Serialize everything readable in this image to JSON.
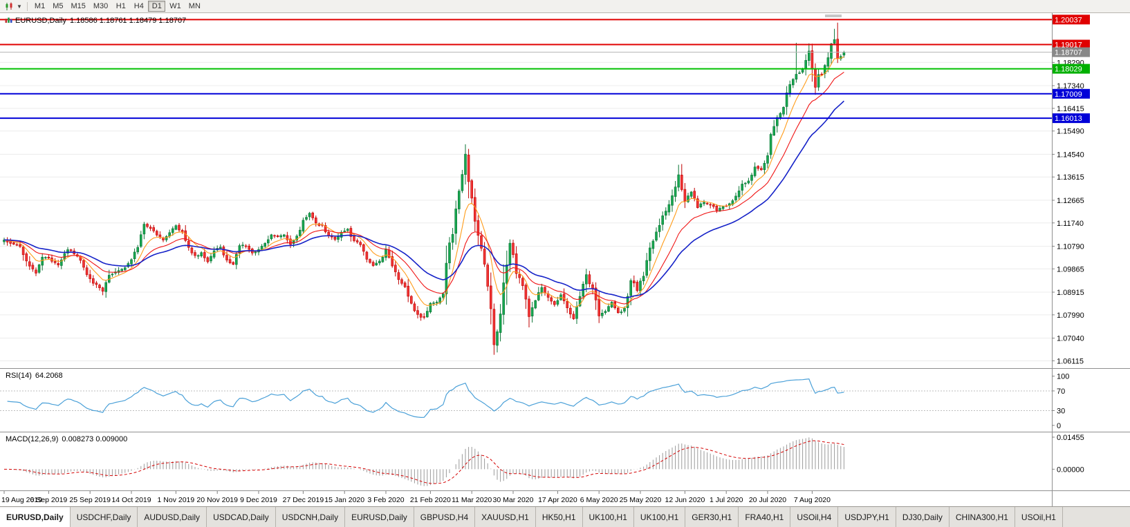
{
  "toolbar": {
    "timeframes": [
      "M1",
      "M5",
      "M15",
      "M30",
      "H1",
      "H4",
      "D1",
      "W1",
      "MN"
    ],
    "active_timeframe": "D1",
    "chart_icon": "candlestick-chart-icon"
  },
  "main_chart": {
    "title": "EURUSD,Daily",
    "ohlc": "1.18586 1.18761 1.18479 1.18707",
    "price_ticks": [
      "1.18290",
      "1.17340",
      "1.16415",
      "1.15490",
      "1.14540",
      "1.13615",
      "1.12665",
      "1.11740",
      "1.10790",
      "1.09865",
      "1.08915",
      "1.07990",
      "1.07040",
      "1.06115"
    ],
    "levels": [
      {
        "price": 1.20037,
        "label": "1.20037",
        "color": "#e00000",
        "badge_color": "#e00000",
        "width": 2,
        "type": "resistance-line"
      },
      {
        "price": 1.19017,
        "label": "1.19017",
        "color": "#e00000",
        "badge_color": "#e00000",
        "width": 2,
        "type": "resistance-line"
      },
      {
        "price": 1.18707,
        "label": "1.18707",
        "color": "#b6b6b6",
        "badge_color": "#888888",
        "width": 1,
        "type": "current-price-line"
      },
      {
        "price": 1.18029,
        "label": "1.18029",
        "color": "#00c000",
        "badge_color": "#00b000",
        "width": 2,
        "type": "support-line"
      },
      {
        "price": 1.17009,
        "label": "1.17009",
        "color": "#0000d8",
        "badge_color": "#0000d8",
        "width": 2,
        "type": "support-line"
      },
      {
        "price": 1.16013,
        "label": "1.16013",
        "color": "#0000d8",
        "badge_color": "#0000d8",
        "width": 2,
        "type": "support-line"
      }
    ],
    "date_labels": [
      {
        "label": "19 Aug 2019",
        "day": 0
      },
      {
        "label": "6 Sep 2019",
        "day": 14
      },
      {
        "label": "25 Sep 2019",
        "day": 27
      },
      {
        "label": "14 Oct 2019",
        "day": 40
      },
      {
        "label": "1 Nov 2019",
        "day": 54
      },
      {
        "label": "20 Nov 2019",
        "day": 67
      },
      {
        "label": "9 Dec 2019",
        "day": 80
      },
      {
        "label": "27 Dec 2019",
        "day": 94
      },
      {
        "label": "15 Jan 2020",
        "day": 107
      },
      {
        "label": "3 Feb 2020",
        "day": 120
      },
      {
        "label": "21 Feb 2020",
        "day": 134
      },
      {
        "label": "11 Mar 2020",
        "day": 147
      },
      {
        "label": "30 Mar 2020",
        "day": 160
      },
      {
        "label": "17 Apr 2020",
        "day": 174
      },
      {
        "label": "6 May 2020",
        "day": 187
      },
      {
        "label": "25 May 2020",
        "day": 200
      },
      {
        "label": "12 Jun 2020",
        "day": 214
      },
      {
        "label": "1 Jul 2020",
        "day": 227
      },
      {
        "label": "20 Jul 2020",
        "day": 240
      },
      {
        "label": "7 Aug 2020",
        "day": 254
      }
    ]
  },
  "rsi_panel": {
    "label": "RSI(14)",
    "value": "64.2068",
    "levels": [
      "100",
      "70",
      "30",
      "0"
    ],
    "upper_level": 70,
    "lower_level": 30,
    "line_color": "#4aa0d8"
  },
  "macd_panel": {
    "label": "MACD(12,26,9)",
    "values": "0.008273 0.009000",
    "ticks": [
      "0.01455",
      "0.00000"
    ],
    "histogram_color": "#9a9a9a",
    "signal_color": "#d40000"
  },
  "tabs": {
    "active_index": 0,
    "items": [
      "EURUSD,Daily",
      "USDCHF,Daily",
      "AUDUSD,Daily",
      "USDCAD,Daily",
      "USDCNH,Daily",
      "EURUSD,Daily",
      "GBPUSD,H4",
      "XAUUSD,H1",
      "HK50,H1",
      "UK100,H1",
      "UK100,H1",
      "GER30,H1",
      "FRA40,H1",
      "USOil,H4",
      "USDJPY,H1",
      "DJ30,Daily",
      "CHINA300,H1",
      "USOil,H1"
    ],
    "tab_icon": "chart-tab-icon"
  },
  "chart_data": {
    "type": "candlestick",
    "symbol": "EURUSD",
    "period": "Daily",
    "ylim": [
      1.05815,
      1.203
    ],
    "num_candles": 265,
    "last_ohlc": {
      "open": 1.18586,
      "high": 1.18761,
      "low": 1.18479,
      "close": 1.18707
    },
    "up_color": "#18a650",
    "up_border": "#0b7436",
    "down_color": "#f03535",
    "down_border": "#c00000",
    "moving_averages": [
      {
        "period": 8,
        "method": "ema",
        "color": "#ff9c1a"
      },
      {
        "period": 18,
        "method": "ema",
        "color": "#f01414"
      },
      {
        "period": 34,
        "method": "ema",
        "color": "#1522c8"
      }
    ],
    "indicators": {
      "rsi": {
        "period": 14,
        "last_value": 64.2068
      },
      "macd": {
        "fast": 12,
        "slow": 26,
        "signal": 9,
        "last_main": 0.008273,
        "last_signal": 0.009
      }
    },
    "close_anchors": [
      [
        0,
        1.1105
      ],
      [
        2,
        1.109
      ],
      [
        5,
        1.1078
      ],
      [
        8,
        1.0992
      ],
      [
        10,
        1.0972
      ],
      [
        12,
        1.1032
      ],
      [
        14,
        1.1028
      ],
      [
        17,
        1.1005
      ],
      [
        20,
        1.1068
      ],
      [
        23,
        1.1042
      ],
      [
        25,
        1.0988
      ],
      [
        27,
        1.0942
      ],
      [
        29,
        1.0921
      ],
      [
        31,
        1.0898
      ],
      [
        33,
        1.0962
      ],
      [
        36,
        1.098
      ],
      [
        38,
        1.0995
      ],
      [
        40,
        1.1028
      ],
      [
        42,
        1.1072
      ],
      [
        44,
        1.1168
      ],
      [
        46,
        1.115
      ],
      [
        48,
        1.1128
      ],
      [
        50,
        1.1105
      ],
      [
        52,
        1.1132
      ],
      [
        54,
        1.1162
      ],
      [
        56,
        1.1135
      ],
      [
        58,
        1.1072
      ],
      [
        60,
        1.1038
      ],
      [
        62,
        1.1052
      ],
      [
        64,
        1.1018
      ],
      [
        66,
        1.1062
      ],
      [
        68,
        1.1078
      ],
      [
        70,
        1.1015
      ],
      [
        72,
        1.1002
      ],
      [
        74,
        1.1078
      ],
      [
        76,
        1.1082
      ],
      [
        78,
        1.1055
      ],
      [
        80,
        1.1065
      ],
      [
        82,
        1.1088
      ],
      [
        84,
        1.1125
      ],
      [
        86,
        1.1118
      ],
      [
        88,
        1.1122
      ],
      [
        90,
        1.1088
      ],
      [
        92,
        1.1118
      ],
      [
        94,
        1.1178
      ],
      [
        96,
        1.1212
      ],
      [
        98,
        1.1172
      ],
      [
        100,
        1.1162
      ],
      [
        102,
        1.1122
      ],
      [
        104,
        1.1108
      ],
      [
        106,
        1.1132
      ],
      [
        108,
        1.1148
      ],
      [
        110,
        1.1098
      ],
      [
        112,
        1.1088
      ],
      [
        114,
        1.1022
      ],
      [
        116,
        1.1002
      ],
      [
        118,
        1.1018
      ],
      [
        120,
        1.1062
      ],
      [
        122,
        1.1
      ],
      [
        124,
        1.0948
      ],
      [
        126,
        1.0912
      ],
      [
        128,
        1.0842
      ],
      [
        130,
        1.0798
      ],
      [
        132,
        1.0788
      ],
      [
        134,
        1.0848
      ],
      [
        136,
        1.0852
      ],
      [
        138,
        1.0888
      ],
      [
        139,
        1.1026
      ],
      [
        141,
        1.1138
      ],
      [
        143,
        1.1288
      ],
      [
        145,
        1.145
      ],
      [
        146,
        1.1362
      ],
      [
        147,
        1.1272
      ],
      [
        149,
        1.1108
      ],
      [
        151,
        1.1012
      ],
      [
        152,
        1.0918
      ],
      [
        153,
        1.0818
      ],
      [
        154,
        1.069
      ],
      [
        155,
        1.0727
      ],
      [
        156,
        1.0788
      ],
      [
        158,
        1.1032
      ],
      [
        159,
        1.1088
      ],
      [
        160,
        1.1046
      ],
      [
        161,
        1.0982
      ],
      [
        163,
        1.0922
      ],
      [
        165,
        1.0792
      ],
      [
        167,
        1.0858
      ],
      [
        169,
        1.0912
      ],
      [
        171,
        1.0868
      ],
      [
        173,
        1.0842
      ],
      [
        175,
        1.0878
      ],
      [
        177,
        1.0822
      ],
      [
        179,
        1.0778
      ],
      [
        181,
        1.0872
      ],
      [
        183,
        1.0958
      ],
      [
        185,
        1.0902
      ],
      [
        187,
        1.0798
      ],
      [
        189,
        1.0812
      ],
      [
        191,
        1.0848
      ],
      [
        193,
        1.0808
      ],
      [
        195,
        1.0822
      ],
      [
        197,
        1.0952
      ],
      [
        199,
        1.0902
      ],
      [
        201,
        1.0962
      ],
      [
        203,
        1.1078
      ],
      [
        205,
        1.1132
      ],
      [
        207,
        1.1198
      ],
      [
        209,
        1.1252
      ],
      [
        211,
        1.1322
      ],
      [
        212,
        1.1378
      ],
      [
        213,
        1.1302
      ],
      [
        214,
        1.1258
      ],
      [
        216,
        1.1302
      ],
      [
        218,
        1.1242
      ],
      [
        220,
        1.1262
      ],
      [
        222,
        1.1248
      ],
      [
        224,
        1.1228
      ],
      [
        226,
        1.1238
      ],
      [
        228,
        1.1252
      ],
      [
        230,
        1.1282
      ],
      [
        232,
        1.1332
      ],
      [
        234,
        1.1342
      ],
      [
        236,
        1.1402
      ],
      [
        238,
        1.1388
      ],
      [
        240,
        1.1446
      ],
      [
        241,
        1.1528
      ],
      [
        243,
        1.1598
      ],
      [
        245,
        1.1652
      ],
      [
        247,
        1.1742
      ],
      [
        249,
        1.1778
      ],
      [
        251,
        1.1802
      ],
      [
        253,
        1.1878
      ],
      [
        254,
        1.1788
      ],
      [
        255,
        1.1736
      ],
      [
        256,
        1.1792
      ],
      [
        257,
        1.1782
      ],
      [
        258,
        1.1812
      ],
      [
        259,
        1.1842
      ],
      [
        260,
        1.1902
      ],
      [
        261,
        1.1926
      ],
      [
        262,
        1.1838
      ],
      [
        263,
        1.1858
      ],
      [
        264,
        1.1871
      ]
    ],
    "extremes": [
      {
        "day": 31,
        "low": 1.0879
      },
      {
        "day": 145,
        "high": 1.1495
      },
      {
        "day": 154,
        "low": 1.0636
      },
      {
        "day": 249,
        "high": 1.1909
      },
      {
        "day": 261,
        "high": 1.1966
      }
    ]
  }
}
